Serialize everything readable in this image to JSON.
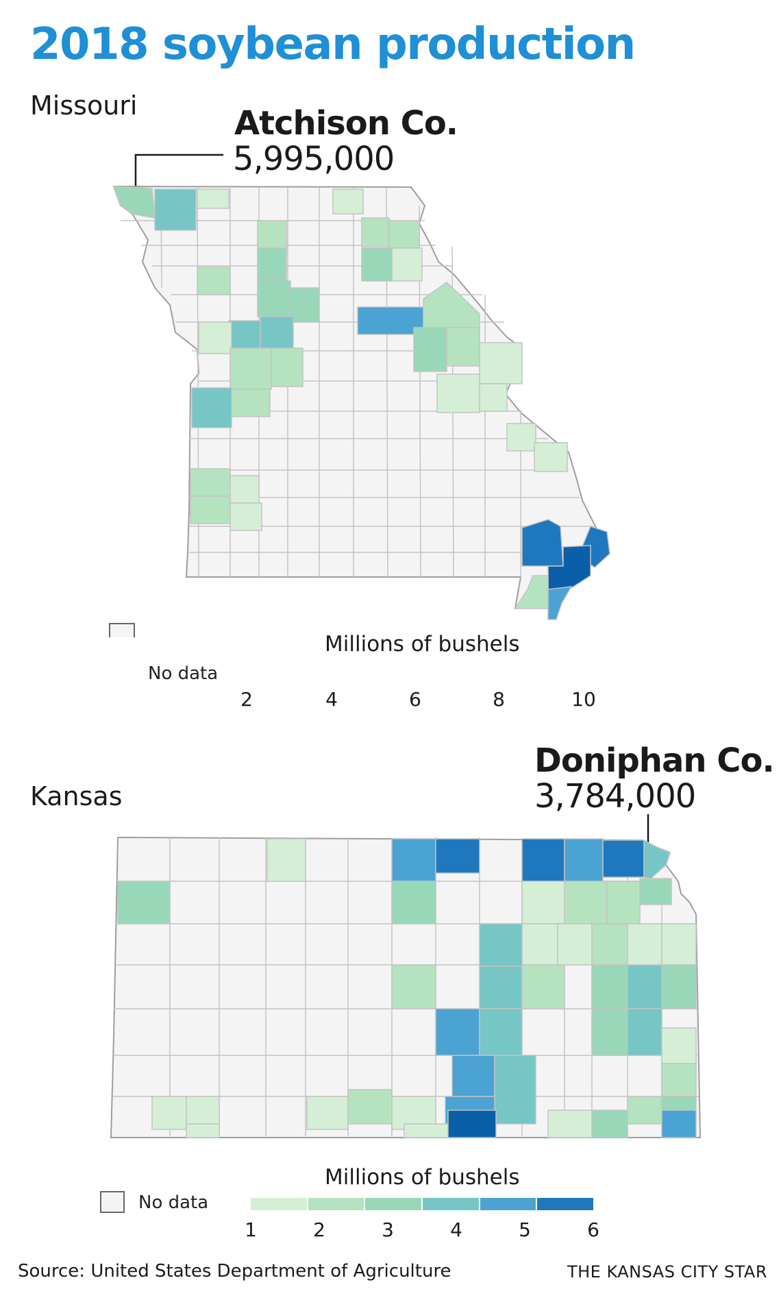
{
  "title": "2018 soybean production",
  "colors": {
    "title": "#1f8fd6",
    "no_data": "#f4f4f4",
    "border": "#bdbdbd",
    "scale": [
      "#d4efd6",
      "#b5e3bf",
      "#98d8b8",
      "#76c6c6",
      "#4aa3d2",
      "#1f78bd",
      "#0b5fa8"
    ]
  },
  "missouri": {
    "label": "Missouri",
    "callout": {
      "county": "Atchison Co.",
      "value": "5,995,000"
    },
    "legend": {
      "title": "Millions of bushels",
      "no_data": "No data",
      "ticks": [
        "2",
        "4",
        "6",
        "8",
        "10"
      ]
    }
  },
  "kansas": {
    "label": "Kansas",
    "callout": {
      "county": "Doniphan Co.",
      "value": "3,784,000"
    },
    "legend": {
      "title": "Millions of bushels",
      "no_data": "No data",
      "ticks": [
        "1",
        "2",
        "3",
        "4",
        "5",
        "6"
      ]
    }
  },
  "footer": {
    "source": "Source: United States Department of Agriculture",
    "publisher": "THE KANSAS CITY STAR"
  }
}
